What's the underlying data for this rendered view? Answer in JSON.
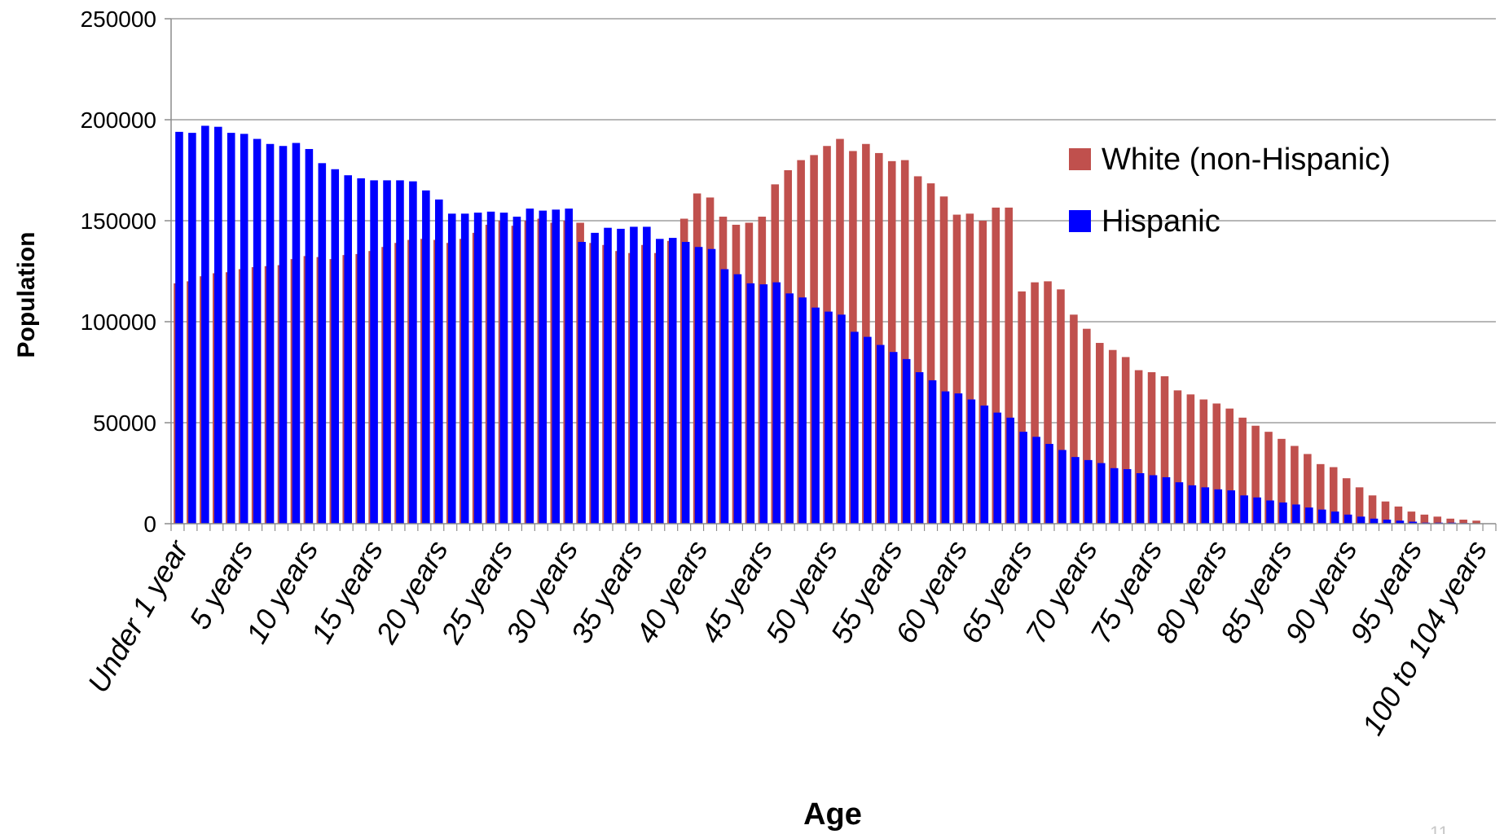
{
  "chart_data": {
    "type": "bar",
    "title": "",
    "xlabel": "Age",
    "ylabel": "Population",
    "ylim": [
      0,
      250000
    ],
    "yticks": [
      0,
      50000,
      100000,
      150000,
      200000,
      250000
    ],
    "grid": true,
    "legend_position": "top-right",
    "categories": [
      "Under 1 year",
      "1 year",
      "2 years",
      "3 years",
      "4 years",
      "5 years",
      "6 years",
      "7 years",
      "8 years",
      "9 years",
      "10 years",
      "11 years",
      "12 years",
      "13 years",
      "14 years",
      "15 years",
      "16 years",
      "17 years",
      "18 years",
      "19 years",
      "20 years",
      "21 years",
      "22 years",
      "23 years",
      "24 years",
      "25 years",
      "26 years",
      "27 years",
      "28 years",
      "29 years",
      "30 years",
      "31 years",
      "32 years",
      "33 years",
      "34 years",
      "35 years",
      "36 years",
      "37 years",
      "38 years",
      "39 years",
      "40 years",
      "41 years",
      "42 years",
      "43 years",
      "44 years",
      "45 years",
      "46 years",
      "47 years",
      "48 years",
      "49 years",
      "50 years",
      "51 years",
      "52 years",
      "53 years",
      "54 years",
      "55 years",
      "56 years",
      "57 years",
      "58 years",
      "59 years",
      "60 years",
      "61 years",
      "62 years",
      "63 years",
      "64 years",
      "65 years",
      "66 years",
      "67 years",
      "68 years",
      "69 years",
      "70 years",
      "71 years",
      "72 years",
      "73 years",
      "74 years",
      "75 years",
      "76 years",
      "77 years",
      "78 years",
      "79 years",
      "80 years",
      "81 years",
      "82 years",
      "83 years",
      "84 years",
      "85 years",
      "86 years",
      "87 years",
      "88 years",
      "89 years",
      "90 years",
      "91 years",
      "92 years",
      "93 years",
      "94 years",
      "95 years",
      "96 years",
      "97 years",
      "98 years",
      "99 years",
      "100 to 104 years"
    ],
    "xtick_labels": [
      {
        "index": 0,
        "label": "Under 1 year"
      },
      {
        "index": 5,
        "label": "5 years"
      },
      {
        "index": 10,
        "label": "10 years"
      },
      {
        "index": 15,
        "label": "15 years"
      },
      {
        "index": 20,
        "label": "20 years"
      },
      {
        "index": 25,
        "label": "25 years"
      },
      {
        "index": 30,
        "label": "30 years"
      },
      {
        "index": 35,
        "label": "35 years"
      },
      {
        "index": 40,
        "label": "40 years"
      },
      {
        "index": 45,
        "label": "45 years"
      },
      {
        "index": 50,
        "label": "50 years"
      },
      {
        "index": 55,
        "label": "55 years"
      },
      {
        "index": 60,
        "label": "60 years"
      },
      {
        "index": 65,
        "label": "65 years"
      },
      {
        "index": 70,
        "label": "70 years"
      },
      {
        "index": 75,
        "label": "75 years"
      },
      {
        "index": 80,
        "label": "80 years"
      },
      {
        "index": 85,
        "label": "85 years"
      },
      {
        "index": 90,
        "label": "90 years"
      },
      {
        "index": 95,
        "label": "95 years"
      },
      {
        "index": 100,
        "label": "100 to 104 years"
      }
    ],
    "series": [
      {
        "name": "White (non-Hispanic)",
        "color": "#c0504d",
        "values": [
          119000,
          120000,
          122500,
          124000,
          124500,
          126000,
          127000,
          127500,
          128000,
          131000,
          132500,
          132000,
          131000,
          133000,
          133500,
          135000,
          137000,
          139000,
          140500,
          141000,
          140500,
          139000,
          141000,
          144000,
          148000,
          150000,
          147500,
          150000,
          151000,
          149000,
          150000,
          149000,
          139000,
          138000,
          135000,
          134000,
          138000,
          134000,
          140000,
          151000,
          163500,
          161500,
          152000,
          148000,
          149000,
          152000,
          168000,
          175000,
          180000,
          182500,
          187000,
          190500,
          184500,
          188000,
          183500,
          179500,
          180000,
          172000,
          168500,
          162000,
          153000,
          153500,
          150000,
          156500,
          156500,
          115000,
          119500,
          120000,
          116000,
          103500,
          96500,
          89500,
          86000,
          82500,
          76000,
          75000,
          73000,
          66000,
          64000,
          61500,
          59500,
          57000,
          52500,
          48500,
          45500,
          42000,
          38500,
          34500,
          29500,
          28000,
          22500,
          18000,
          14000,
          11000,
          8500,
          6000,
          4500,
          3500,
          2500,
          2000,
          1500
        ]
      },
      {
        "name": "Hispanic",
        "color": "#0000ff",
        "values": [
          194000,
          193500,
          197000,
          196500,
          193500,
          193000,
          190500,
          188000,
          187000,
          188500,
          185500,
          178500,
          175500,
          172500,
          171000,
          170000,
          170000,
          170000,
          169500,
          165000,
          160500,
          153500,
          153500,
          154000,
          154500,
          154000,
          152000,
          156000,
          155000,
          155500,
          156000,
          139500,
          144000,
          146500,
          146000,
          147000,
          147000,
          141000,
          141500,
          139500,
          137000,
          136000,
          126000,
          123500,
          119000,
          118500,
          119500,
          114000,
          112000,
          107000,
          105000,
          103500,
          95000,
          92500,
          88500,
          85000,
          81500,
          75000,
          71000,
          65500,
          64500,
          61500,
          58500,
          55000,
          52500,
          45500,
          43000,
          39500,
          36500,
          33000,
          31500,
          30000,
          27500,
          27000,
          25000,
          24000,
          23000,
          20500,
          19000,
          18000,
          17000,
          16500,
          14000,
          13000,
          11500,
          10500,
          9500,
          8000,
          7000,
          6000,
          4500,
          3500,
          2500,
          2000,
          1500,
          1000,
          500,
          500,
          500,
          300,
          200
        ]
      }
    ],
    "slide_number": "11"
  }
}
